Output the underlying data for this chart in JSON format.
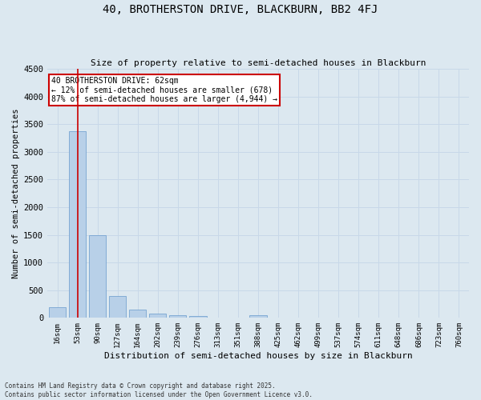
{
  "title": "40, BROTHERSTON DRIVE, BLACKBURN, BB2 4FJ",
  "subtitle": "Size of property relative to semi-detached houses in Blackburn",
  "xlabel": "Distribution of semi-detached houses by size in Blackburn",
  "ylabel": "Number of semi-detached properties",
  "bar_color": "#b8d0e8",
  "bar_edge_color": "#6699cc",
  "categories": [
    "16sqm",
    "53sqm",
    "90sqm",
    "127sqm",
    "164sqm",
    "202sqm",
    "239sqm",
    "276sqm",
    "313sqm",
    "351sqm",
    "388sqm",
    "425sqm",
    "462sqm",
    "499sqm",
    "537sqm",
    "574sqm",
    "611sqm",
    "648sqm",
    "686sqm",
    "723sqm",
    "760sqm"
  ],
  "values": [
    200,
    3370,
    1500,
    390,
    150,
    75,
    50,
    30,
    5,
    5,
    50,
    5,
    0,
    0,
    0,
    0,
    0,
    0,
    0,
    0,
    0
  ],
  "vline_x": 1,
  "vline_color": "#cc0000",
  "annotation_text": "40 BROTHERSTON DRIVE: 62sqm\n← 12% of semi-detached houses are smaller (678)\n87% of semi-detached houses are larger (4,944) →",
  "annotation_box_color": "#cc0000",
  "annotation_bg": "#ffffff",
  "ylim": [
    0,
    4500
  ],
  "yticks": [
    0,
    500,
    1000,
    1500,
    2000,
    2500,
    3000,
    3500,
    4000,
    4500
  ],
  "grid_color": "#c8d8e8",
  "background_color": "#dce8f0",
  "footer_line1": "Contains HM Land Registry data © Crown copyright and database right 2025.",
  "footer_line2": "Contains public sector information licensed under the Open Government Licence v3.0."
}
